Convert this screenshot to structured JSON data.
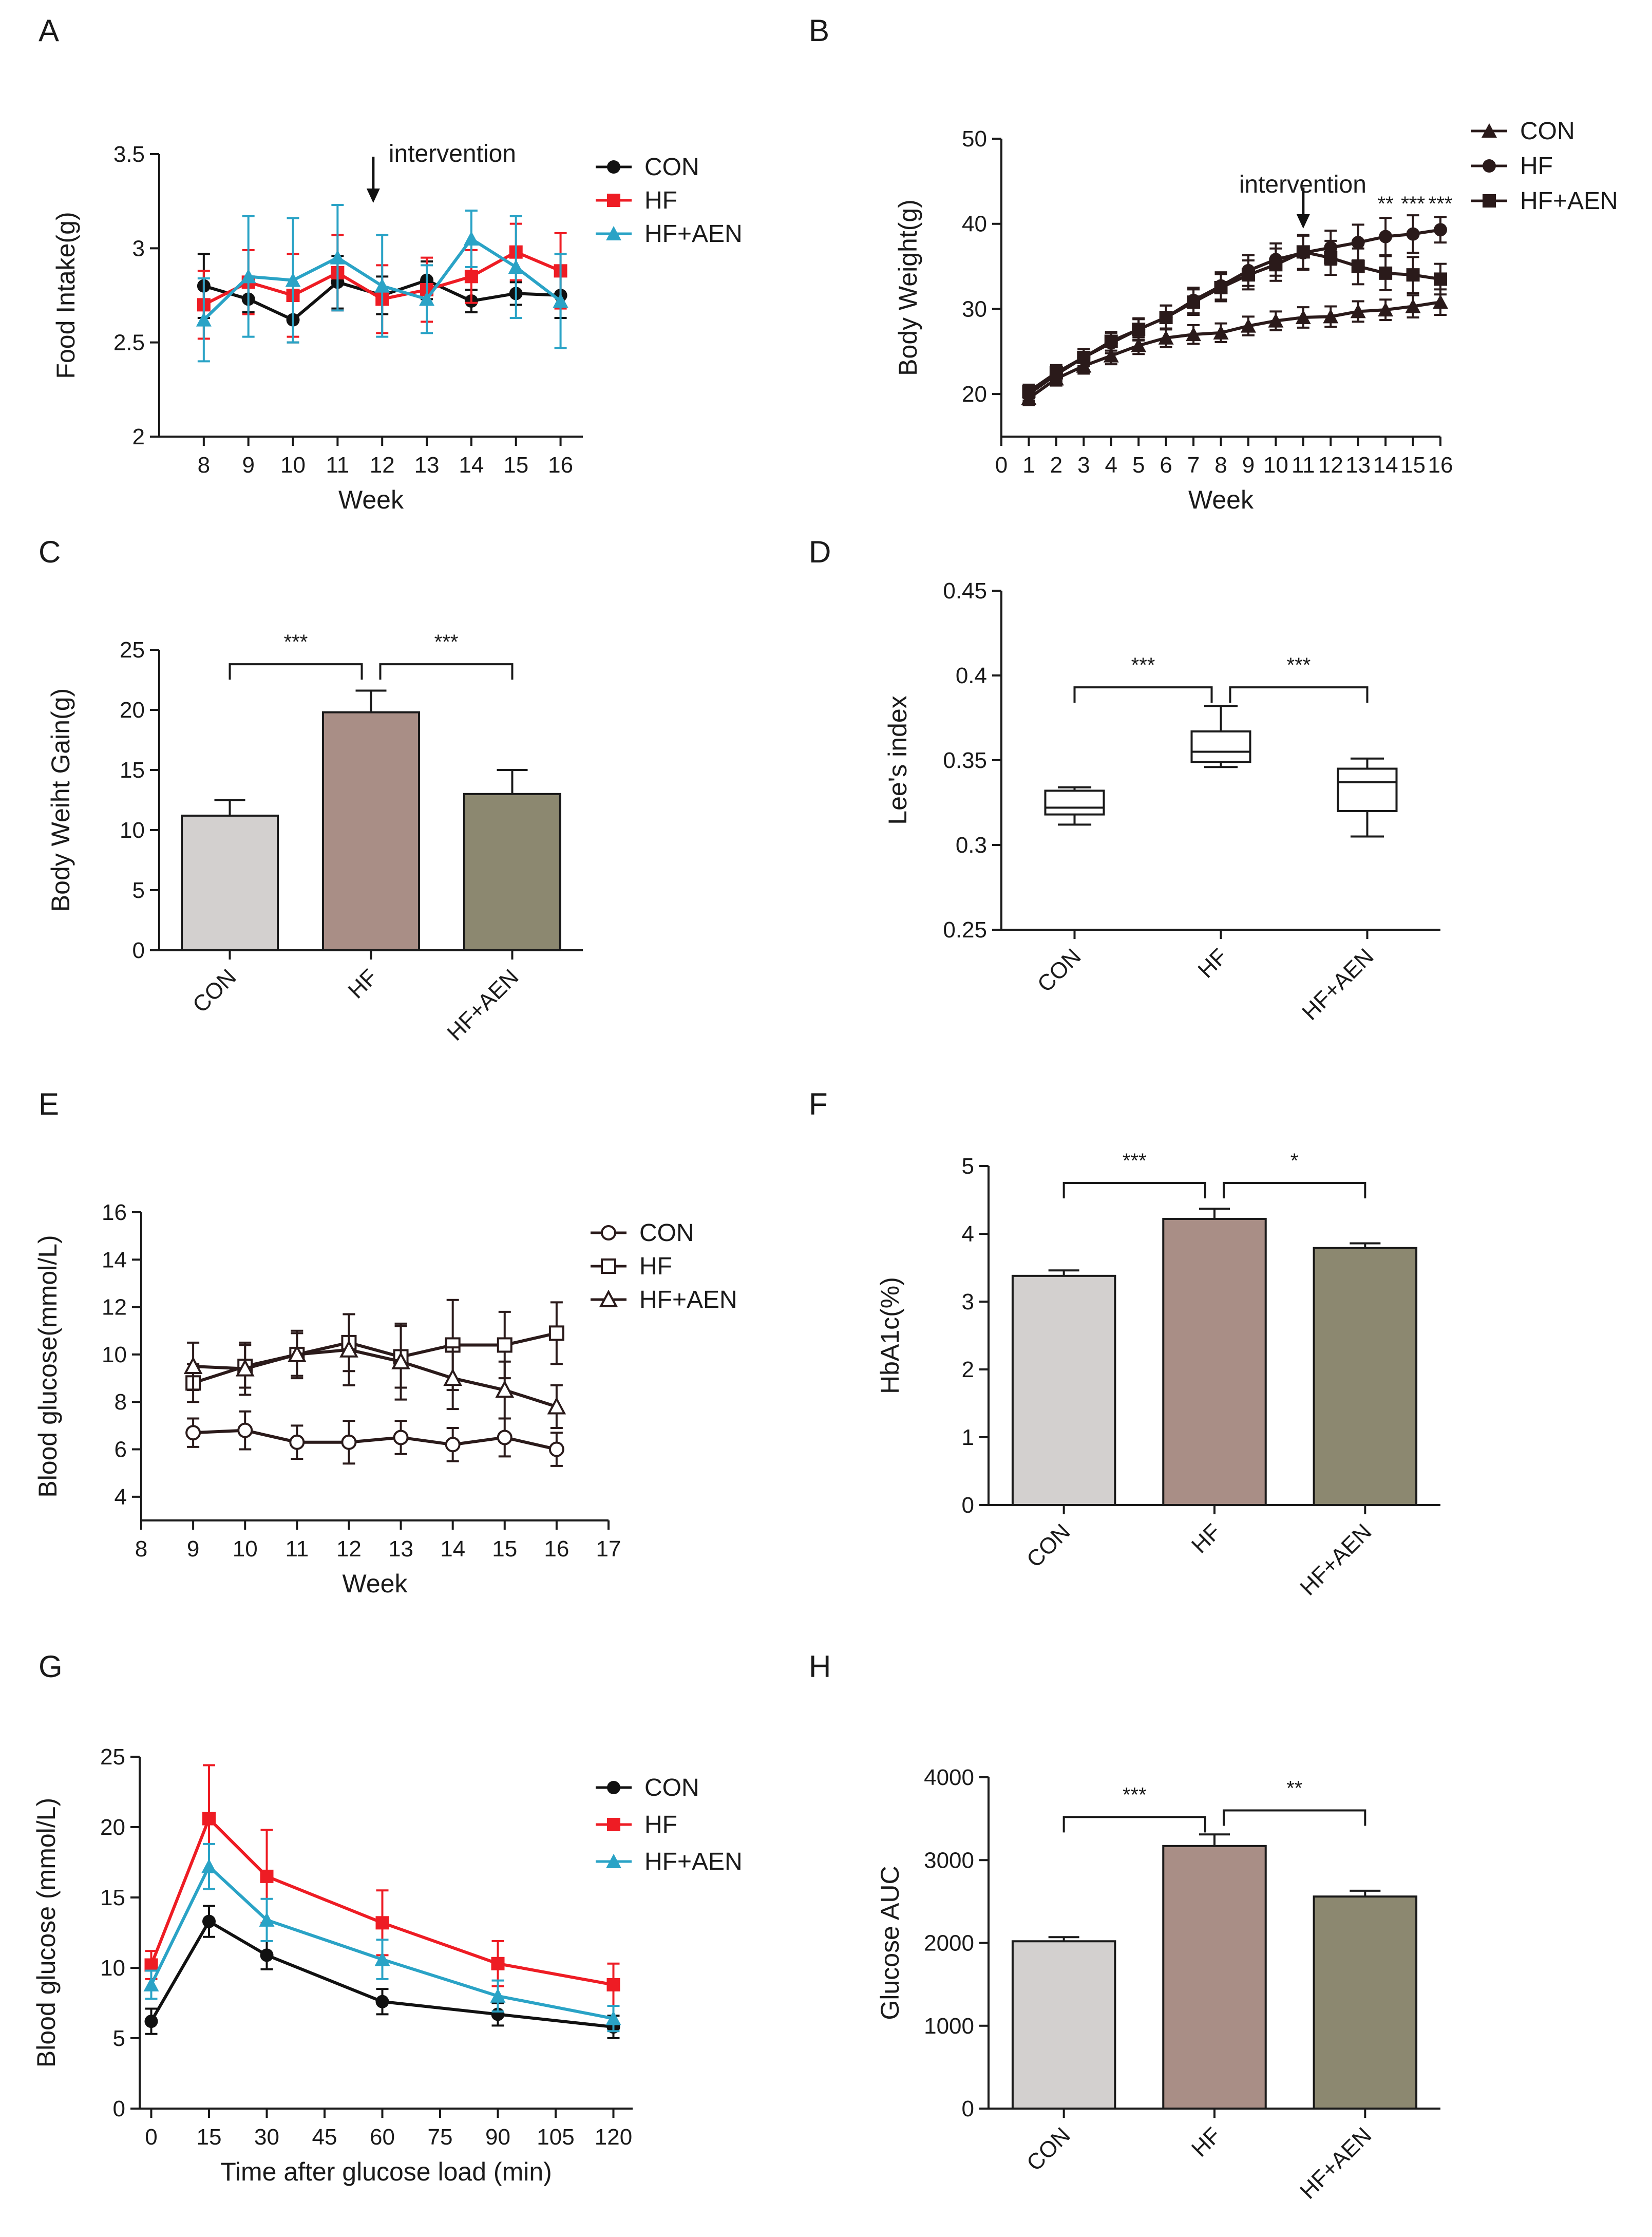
{
  "colors": {
    "con": "#111111",
    "hf": "#ee1c24",
    "hf_aen": "#2aa3c6",
    "dark": "#2a1a1a",
    "bar_con": "#d3d0cf",
    "bar_hf": "#a98e86",
    "bar_hf_aen": "#8c8870"
  },
  "chart_data": [
    {
      "panel": "A",
      "type": "line",
      "title": "",
      "xlabel": "Week",
      "ylabel": "Food Intake(g)",
      "ylim": [
        2,
        3.5
      ],
      "xlim": [
        7,
        16.5
      ],
      "xticks": [
        8,
        9,
        10,
        11,
        12,
        13,
        14,
        15,
        16
      ],
      "xtick_labels": [
        "8",
        "9",
        "10",
        "11",
        "12",
        "13",
        "14",
        "15",
        "16"
      ],
      "yticks": [
        2,
        2.5,
        3,
        3.5
      ],
      "ytick_labels": [
        "2",
        "2.5",
        "3",
        "3.5"
      ],
      "annotation": "intervention",
      "annotation_x": 11.8,
      "x": [
        8,
        9,
        10,
        11,
        12,
        13,
        14,
        15,
        16
      ],
      "series": [
        {
          "name": "CON",
          "key": "con",
          "marker": "circle",
          "values": [
            2.8,
            2.73,
            2.62,
            2.82,
            2.75,
            2.83,
            2.72,
            2.76,
            2.75
          ],
          "errors": [
            0.17,
            0.07,
            0.12,
            0.14,
            0.1,
            0.1,
            0.06,
            0.06,
            0.12
          ]
        },
        {
          "name": "HF",
          "key": "hf",
          "marker": "square",
          "values": [
            2.7,
            2.82,
            2.75,
            2.87,
            2.73,
            2.78,
            2.85,
            2.98,
            2.88
          ],
          "errors": [
            0.18,
            0.17,
            0.22,
            0.2,
            0.18,
            0.17,
            0.14,
            0.15,
            0.2
          ]
        },
        {
          "name": "HF+AEN",
          "key": "hf_aen",
          "marker": "triangle",
          "values": [
            2.62,
            2.85,
            2.83,
            2.95,
            2.8,
            2.73,
            3.05,
            2.9,
            2.72
          ],
          "errors": [
            0.22,
            0.32,
            0.33,
            0.28,
            0.27,
            0.18,
            0.15,
            0.27,
            0.25
          ]
        }
      ]
    },
    {
      "panel": "B",
      "type": "line",
      "title": "",
      "xlabel": "Week",
      "ylabel": "Body Weight(g)",
      "ylim": [
        15,
        50
      ],
      "xlim": [
        0,
        16
      ],
      "xticks": [
        0,
        1,
        2,
        3,
        4,
        5,
        6,
        7,
        8,
        9,
        10,
        11,
        12,
        13,
        14,
        15,
        16
      ],
      "xtick_labels": [
        "0",
        "1",
        "2",
        "3",
        "4",
        "5",
        "6",
        "7",
        "8",
        "9",
        "10",
        "11",
        "12",
        "13",
        "14",
        "15",
        "16"
      ],
      "yticks": [
        20,
        30,
        40,
        50
      ],
      "ytick_labels": [
        "20",
        "30",
        "40",
        "50"
      ],
      "annotation": "intervention",
      "annotation_x": 11,
      "significance": [
        {
          "x": 14,
          "label": "**"
        },
        {
          "x": 15,
          "label": "***"
        },
        {
          "x": 16,
          "label": "***"
        }
      ],
      "x": [
        1,
        2,
        3,
        4,
        5,
        6,
        7,
        8,
        9,
        10,
        11,
        12,
        13,
        14,
        15,
        16
      ],
      "series": [
        {
          "name": "CON",
          "key": "dark",
          "marker": "triangle",
          "values": [
            19.5,
            21.8,
            23.3,
            24.5,
            25.7,
            26.6,
            27.0,
            27.2,
            28.0,
            28.6,
            29.0,
            29.1,
            29.7,
            29.9,
            30.3,
            30.8
          ],
          "errors": [
            0.8,
            0.8,
            0.9,
            1.0,
            1.0,
            1.1,
            1.1,
            1.1,
            1.1,
            1.1,
            1.2,
            1.2,
            1.2,
            1.2,
            1.3,
            1.5
          ]
        },
        {
          "name": "HF",
          "key": "dark",
          "marker": "circle",
          "values": [
            20.0,
            22.3,
            24.3,
            26.0,
            27.6,
            29.0,
            31.0,
            32.7,
            34.5,
            35.8,
            36.6,
            37.2,
            37.8,
            38.5,
            38.8,
            39.3
          ],
          "errors": [
            0.8,
            0.9,
            1.0,
            1.2,
            1.3,
            1.4,
            1.5,
            1.6,
            1.8,
            1.9,
            2.0,
            2.0,
            2.1,
            2.2,
            2.2,
            1.5
          ]
        },
        {
          "name": "HF+AEN",
          "key": "dark",
          "marker": "square",
          "values": [
            20.3,
            22.5,
            24.3,
            26.2,
            27.6,
            29.0,
            30.8,
            32.5,
            34.0,
            35.2,
            36.7,
            36.0,
            35.0,
            34.2,
            34.0,
            33.5
          ],
          "errors": [
            0.8,
            0.9,
            1.0,
            1.1,
            1.2,
            1.4,
            1.5,
            1.6,
            1.7,
            1.9,
            2.0,
            2.0,
            2.1,
            2.0,
            2.1,
            1.8
          ]
        }
      ]
    },
    {
      "panel": "C",
      "type": "bar",
      "title": "",
      "xlabel": "",
      "ylabel": "Body Weiht Gain(g)",
      "ylim": [
        0,
        25
      ],
      "yticks": [
        0,
        5,
        10,
        15,
        20,
        25
      ],
      "ytick_labels": [
        "0",
        "5",
        "10",
        "15",
        "20",
        "25"
      ],
      "categories": [
        "CON",
        "HF",
        "HF+AEN"
      ],
      "values": [
        11.2,
        19.8,
        13.0
      ],
      "errors": [
        1.3,
        1.8,
        2.0
      ],
      "bar_keys": [
        "bar_con",
        "bar_hf",
        "bar_hf_aen"
      ],
      "brackets": [
        {
          "from": 0,
          "to": 1,
          "y": 23.8,
          "label": "***"
        },
        {
          "from": 1,
          "to": 2,
          "y": 23.8,
          "label": "***"
        }
      ]
    },
    {
      "panel": "D",
      "type": "box",
      "title": "",
      "xlabel": "",
      "ylabel": "Lee's index",
      "ylim": [
        0.25,
        0.45
      ],
      "yticks": [
        0.25,
        0.3,
        0.35,
        0.4,
        0.45
      ],
      "ytick_labels": [
        "0.25",
        "0.3",
        "0.35",
        "0.4",
        "0.45"
      ],
      "categories": [
        "CON",
        "HF",
        "HF+AEN"
      ],
      "boxes": [
        {
          "min": 0.312,
          "q1": 0.318,
          "median": 0.322,
          "q3": 0.332,
          "max": 0.334
        },
        {
          "min": 0.346,
          "q1": 0.349,
          "median": 0.355,
          "q3": 0.367,
          "max": 0.382
        },
        {
          "min": 0.305,
          "q1": 0.32,
          "median": 0.337,
          "q3": 0.345,
          "max": 0.351
        }
      ],
      "brackets": [
        {
          "from": 0,
          "to": 1,
          "y": 0.393,
          "label": "***"
        },
        {
          "from": 1,
          "to": 2,
          "y": 0.393,
          "label": "***"
        }
      ]
    },
    {
      "panel": "E",
      "type": "line",
      "title": "",
      "xlabel": "Week",
      "ylabel": "Blood glucose(mmol/L)",
      "ylim": [
        3,
        16
      ],
      "xlim": [
        8,
        17
      ],
      "xticks": [
        8,
        9,
        10,
        11,
        12,
        13,
        14,
        15,
        16,
        17
      ],
      "xtick_labels": [
        "8",
        "9",
        "10",
        "11",
        "12",
        "13",
        "14",
        "15",
        "16",
        "17"
      ],
      "yticks": [
        4,
        6,
        8,
        10,
        12,
        14,
        16
      ],
      "ytick_labels": [
        "4",
        "6",
        "8",
        "10",
        "12",
        "14",
        "16"
      ],
      "x": [
        9,
        10,
        11,
        12,
        13,
        14,
        15,
        16
      ],
      "series": [
        {
          "name": "CON",
          "key": "dark",
          "marker": "open-circle",
          "values": [
            6.7,
            6.8,
            6.3,
            6.3,
            6.5,
            6.2,
            6.5,
            6.0
          ],
          "errors": [
            0.6,
            0.8,
            0.7,
            0.9,
            0.7,
            0.7,
            0.8,
            0.7
          ]
        },
        {
          "name": "HF",
          "key": "dark",
          "marker": "open-square",
          "values": [
            8.8,
            9.5,
            10.0,
            10.5,
            9.9,
            10.4,
            10.4,
            10.9
          ],
          "errors": [
            0.8,
            0.9,
            0.9,
            1.2,
            1.3,
            1.9,
            1.4,
            1.3
          ]
        },
        {
          "name": "HF+AEN",
          "key": "dark",
          "marker": "open-triangle",
          "values": [
            9.5,
            9.4,
            10.0,
            10.2,
            9.7,
            9.0,
            8.5,
            7.8
          ],
          "errors": [
            1.0,
            1.1,
            1.0,
            1.5,
            1.6,
            1.3,
            1.2,
            0.9
          ]
        }
      ]
    },
    {
      "panel": "F",
      "type": "bar",
      "title": "",
      "xlabel": "",
      "ylabel": "HbA1c(%)",
      "ylim": [
        0,
        5
      ],
      "yticks": [
        0,
        1,
        2,
        3,
        4,
        5
      ],
      "ytick_labels": [
        "0",
        "1",
        "2",
        "3",
        "4",
        "5"
      ],
      "categories": [
        "CON",
        "HF",
        "HF+AEN"
      ],
      "values": [
        3.38,
        4.22,
        3.79
      ],
      "errors": [
        0.08,
        0.15,
        0.07
      ],
      "bar_keys": [
        "bar_con",
        "bar_hf",
        "bar_hf_aen"
      ],
      "brackets": [
        {
          "from": 0,
          "to": 1,
          "y": 4.75,
          "label": "***"
        },
        {
          "from": 1,
          "to": 2,
          "y": 4.75,
          "label": "*"
        }
      ]
    },
    {
      "panel": "G",
      "type": "line",
      "title": "",
      "xlabel": "Time after glucose load (min)",
      "ylabel": "Blood glucose (mmol/L)",
      "ylim": [
        0,
        25
      ],
      "xlim": [
        -3,
        125
      ],
      "xticks": [
        0,
        15,
        30,
        45,
        60,
        75,
        90,
        105,
        120
      ],
      "xtick_labels": [
        "0",
        "15",
        "30",
        "45",
        "60",
        "75",
        "90",
        "105",
        "120"
      ],
      "yticks": [
        0,
        5,
        10,
        15,
        20,
        25
      ],
      "ytick_labels": [
        "0",
        "5",
        "10",
        "15",
        "20",
        "25"
      ],
      "x": [
        0,
        15,
        30,
        60,
        90,
        120
      ],
      "series": [
        {
          "name": "CON",
          "key": "con",
          "marker": "circle",
          "values": [
            6.2,
            13.3,
            10.9,
            7.6,
            6.7,
            5.8
          ],
          "errors": [
            0.9,
            1.1,
            1.0,
            0.9,
            0.8,
            0.8
          ]
        },
        {
          "name": "HF",
          "key": "hf",
          "marker": "square",
          "values": [
            10.2,
            20.6,
            16.5,
            13.2,
            10.3,
            8.8
          ],
          "errors": [
            1.0,
            3.8,
            3.3,
            2.3,
            1.6,
            1.5
          ]
        },
        {
          "name": "HF+AEN",
          "key": "hf_aen",
          "marker": "triangle",
          "values": [
            8.8,
            17.2,
            13.4,
            10.6,
            8.0,
            6.4
          ],
          "errors": [
            1.0,
            1.6,
            1.5,
            1.4,
            1.1,
            0.9
          ]
        }
      ]
    },
    {
      "panel": "H",
      "type": "bar",
      "title": "",
      "xlabel": "",
      "ylabel": "Glucose AUC",
      "ylim": [
        0,
        4000
      ],
      "yticks": [
        0,
        1000,
        2000,
        3000,
        4000
      ],
      "ytick_labels": [
        "0",
        "1000",
        "2000",
        "3000",
        "4000"
      ],
      "categories": [
        "CON",
        "HF",
        "HF+AEN"
      ],
      "values": [
        2020,
        3170,
        2560
      ],
      "errors": [
        50,
        140,
        70
      ],
      "bar_keys": [
        "bar_con",
        "bar_hf",
        "bar_hf_aen"
      ],
      "brackets": [
        {
          "from": 0,
          "to": 1,
          "y": 3520,
          "label": "***"
        },
        {
          "from": 1,
          "to": 2,
          "y": 3600,
          "label": "**"
        }
      ]
    }
  ]
}
